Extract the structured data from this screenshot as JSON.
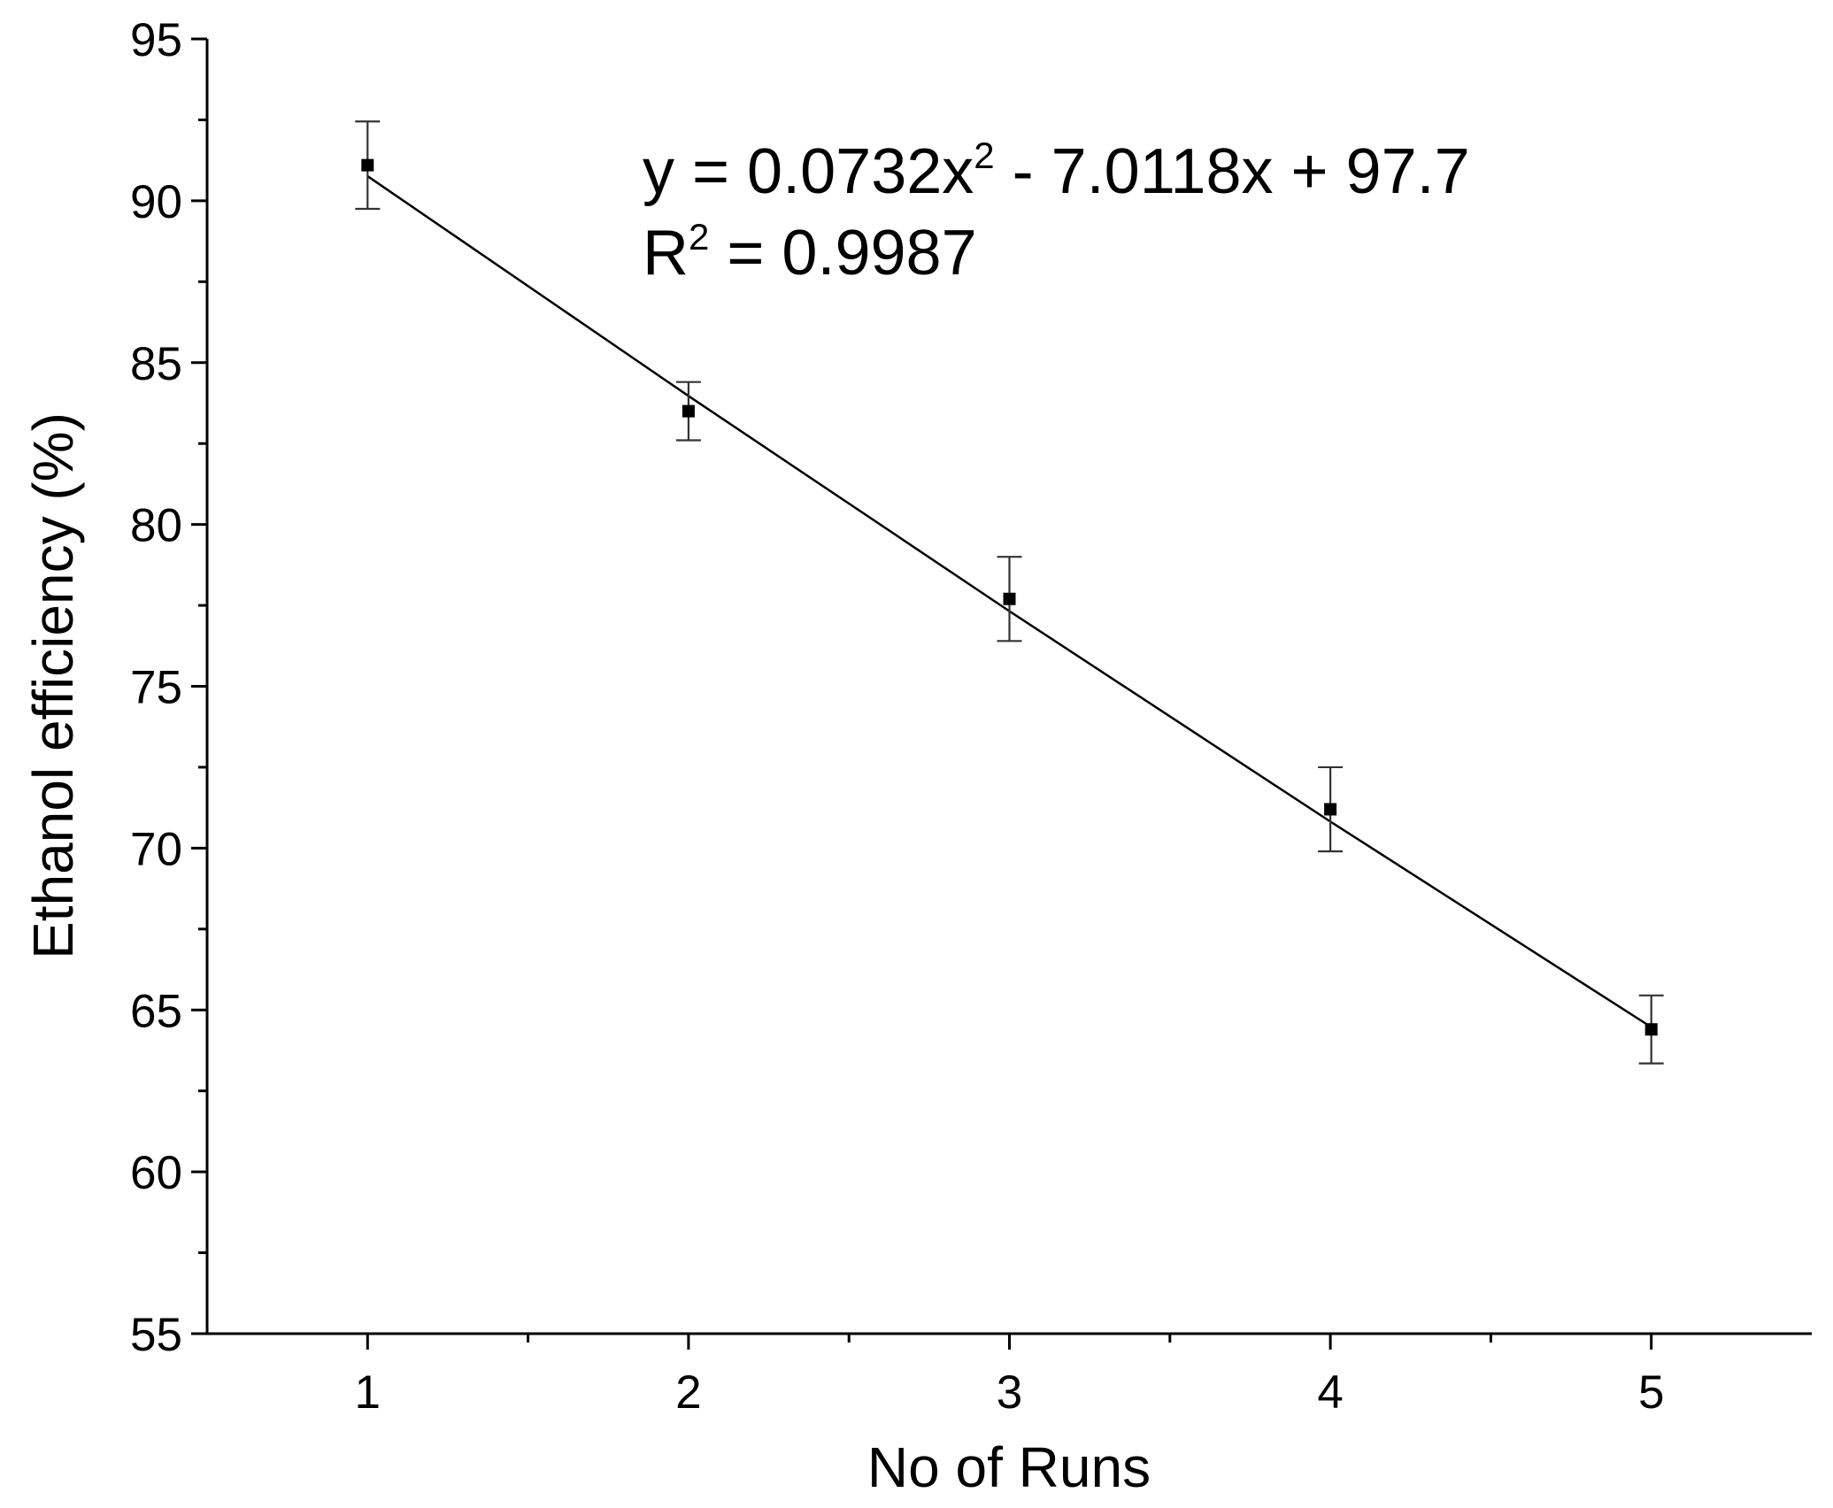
{
  "chart_data": {
    "type": "scatter",
    "x_label": "No of Runs",
    "y_label": "Ethanol efficiency (%)",
    "equation": [
      "y = 0.0732x",
      "2",
      " - 7.0118x + 97.7"
    ],
    "r_squared": [
      "R",
      "2",
      " = 0.9987"
    ],
    "x": [
      1,
      2,
      3,
      4,
      5
    ],
    "series": [
      {
        "color": "#000000",
        "values": [
          91.1,
          83.5,
          77.7,
          71.2,
          64.4
        ],
        "errors": [
          1.35,
          0.9,
          1.3,
          1.3,
          1.05
        ]
      }
    ],
    "fit": {
      "color": "#000000",
      "x": [
        1,
        2,
        3,
        4,
        5
      ],
      "values": [
        90.76,
        83.97,
        77.32,
        70.82,
        64.47
      ]
    },
    "xlim": [
      0.5,
      5.5
    ],
    "xticks": [
      1,
      2,
      3,
      4,
      5
    ],
    "xminor": [
      1.5,
      2.5,
      3.5,
      4.5
    ],
    "ylim": [
      55,
      95
    ],
    "yticks": [
      55,
      60,
      65,
      70,
      75,
      80,
      85,
      90,
      95
    ],
    "yminor": [
      57.5,
      62.5,
      67.5,
      72.5,
      77.5,
      82.5,
      87.5,
      92.5
    ]
  }
}
